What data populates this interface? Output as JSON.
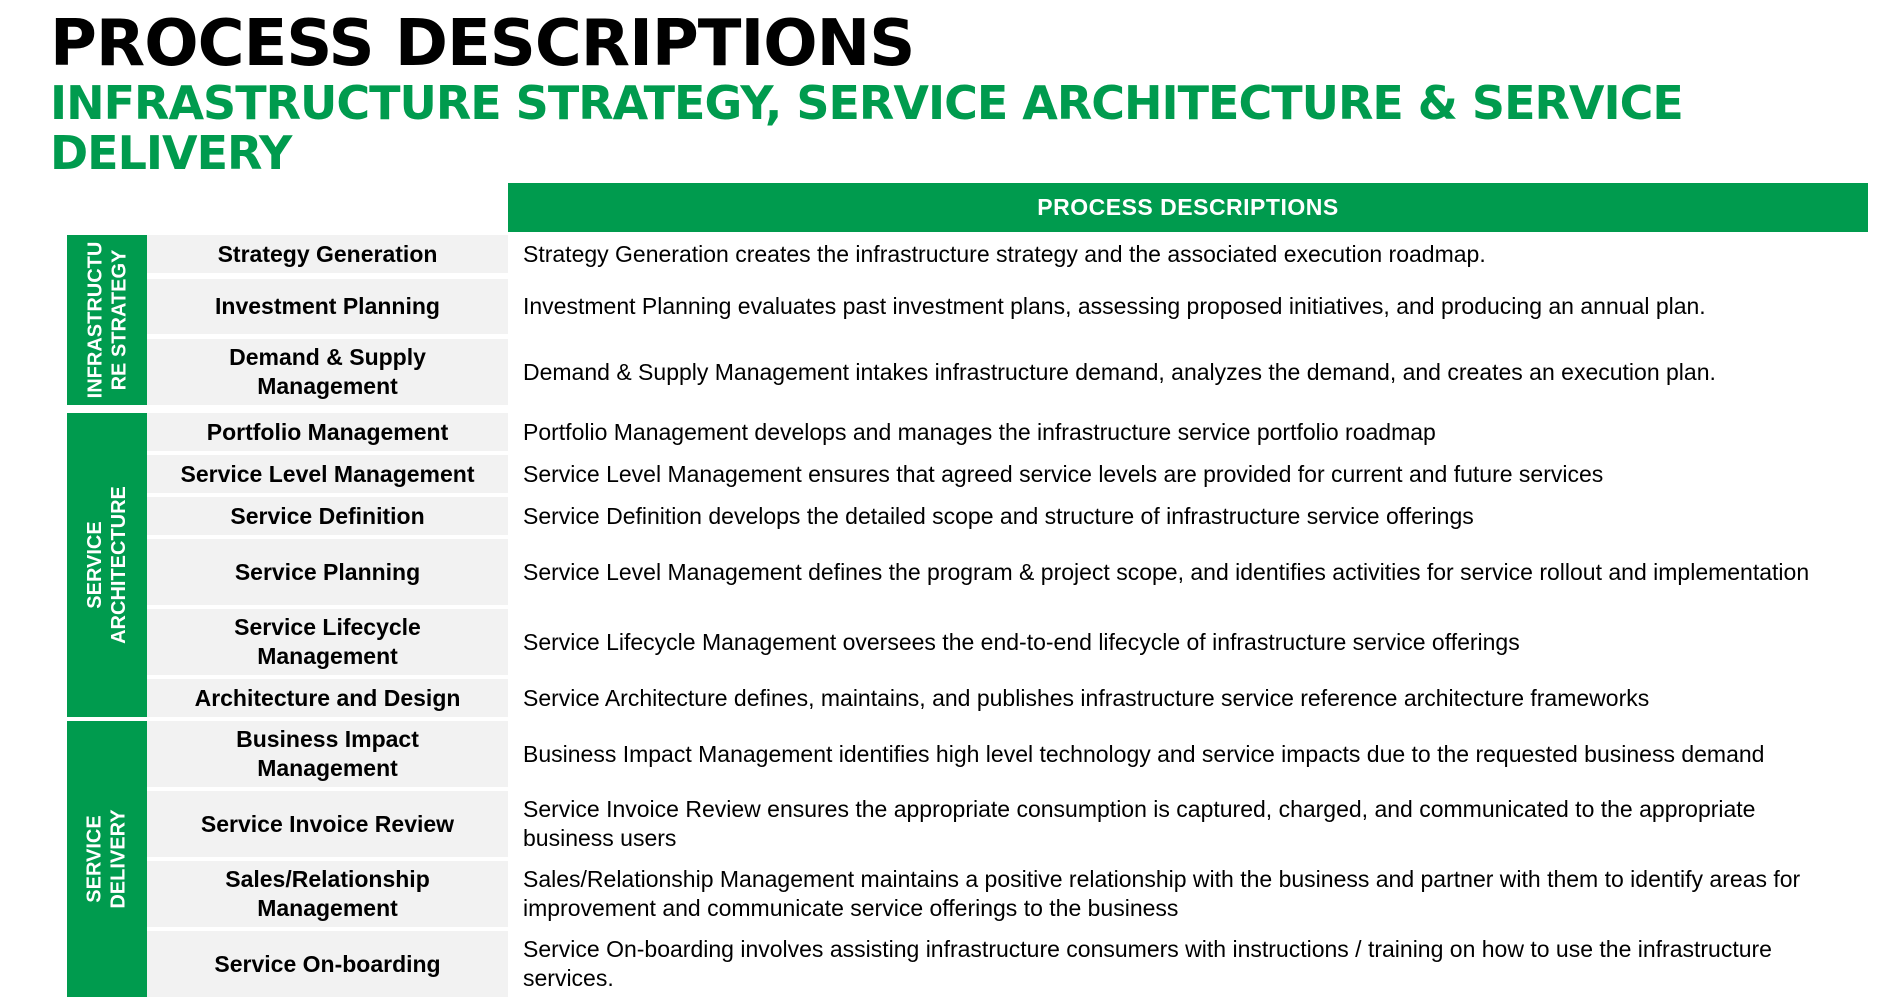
{
  "title": "PROCESS DESCRIPTIONS",
  "subtitle": "INFRASTRUCTURE STRATEGY, SERVICE ARCHITECTURE & SERVICE DELIVERY",
  "table_header": "PROCESS DESCRIPTIONS",
  "colors": {
    "accent": "#009b4e",
    "row_fill": "#f2f2f2"
  },
  "groups": [
    {
      "label": "INFRASTRUCTU RE STRATEGY",
      "rows": [
        {
          "name": "Strategy Generation",
          "description": "Strategy Generation creates the infrastructure strategy and the associated execution roadmap."
        },
        {
          "name": "Investment Planning",
          "description": "Investment Planning evaluates past investment plans, assessing proposed initiatives, and producing an annual plan."
        },
        {
          "name": "Demand & Supply Management",
          "description": "Demand & Supply Management intakes infrastructure demand, analyzes the demand, and creates an execution plan."
        }
      ]
    },
    {
      "label": "SERVICE ARCHITECTURE",
      "rows": [
        {
          "name": "Portfolio Management",
          "description": "Portfolio Management develops and manages the infrastructure service portfolio roadmap"
        },
        {
          "name": "Service Level Management",
          "description": "Service Level Management ensures that agreed service levels are provided for current and future services"
        },
        {
          "name": "Service Definition",
          "description": "Service Definition develops the detailed scope and structure of infrastructure service offerings"
        },
        {
          "name": "Service Planning",
          "description": "Service Level Management defines the program & project scope, and identifies activities for service rollout and implementation"
        },
        {
          "name": "Service Lifecycle Management",
          "description": "Service Lifecycle Management oversees the end-to-end lifecycle of infrastructure service offerings"
        },
        {
          "name": "Architecture and Design",
          "description": "Service Architecture defines, maintains, and publishes infrastructure service reference architecture frameworks"
        }
      ]
    },
    {
      "label": "SERVICE DELIVERY",
      "rows": [
        {
          "name": "Business Impact Management",
          "description": "Business Impact Management identifies high level technology and service impacts due to the requested business demand"
        },
        {
          "name": "Service Invoice Review",
          "description": "Service Invoice Review ensures the appropriate consumption is captured, charged, and communicated to the appropriate business users"
        },
        {
          "name": "Sales/Relationship Management",
          "description": "Sales/Relationship Management maintains a positive relationship with the business and partner with them to identify areas for improvement and communicate service offerings to the business"
        },
        {
          "name": "Service On-boarding",
          "description": "Service On-boarding involves assisting infrastructure consumers with instructions / training on how to use the infrastructure services."
        }
      ]
    }
  ]
}
